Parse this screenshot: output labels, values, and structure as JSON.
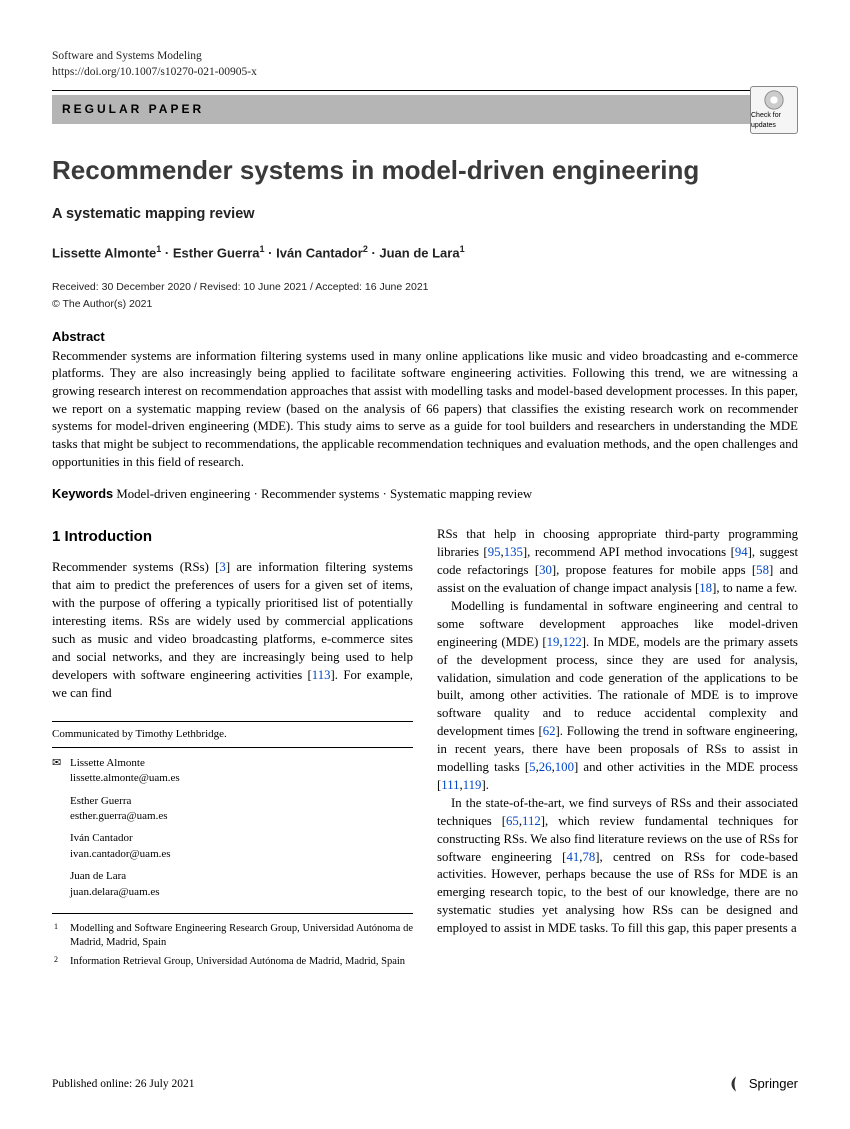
{
  "header": {
    "journal": "Software and Systems Modeling",
    "doi": "https://doi.org/10.1007/s10270-021-00905-x",
    "category": "REGULAR PAPER",
    "check_updates": "Check for updates"
  },
  "title": "Recommender systems in model-driven engineering",
  "subtitle": "A systematic mapping review",
  "authors_html": "Lissette Almonte<sup>1</sup> · Esther Guerra<sup>1</sup> · Iván Cantador<sup>2</sup> · Juan de Lara<sup>1</sup>",
  "dates": "Received: 30 December 2020 / Revised: 10 June 2021 / Accepted: 16 June 2021",
  "copyright": "© The Author(s) 2021",
  "abstract": {
    "label": "Abstract",
    "text": "Recommender systems are information filtering systems used in many online applications like music and video broadcasting and e-commerce platforms. They are also increasingly being applied to facilitate software engineering activities. Following this trend, we are witnessing a growing research interest on recommendation approaches that assist with modelling tasks and model-based development processes. In this paper, we report on a systematic mapping review (based on the analysis of 66 papers) that classifies the existing research work on recommender systems for model-driven engineering (MDE). This study aims to serve as a guide for tool builders and researchers in understanding the MDE tasks that might be subject to recommendations, the applicable recommendation techniques and evaluation methods, and the open challenges and opportunities in this field of research."
  },
  "keywords": {
    "label": "Keywords",
    "text": "Model-driven engineering · Recommender systems · Systematic mapping review"
  },
  "section1": {
    "head": "1 Introduction",
    "p1_a": "Recommender systems (RSs) [",
    "r1": "3",
    "p1_b": "] are information filtering systems that aim to predict the preferences of users for a given set of items, with the purpose of offering a typically prioritised list of potentially interesting items. RSs are widely used by commercial applications such as music and video broadcasting platforms, e-commerce sites and social networks, and they are increasingly being used to help developers with software engineering activities [",
    "r2": "113",
    "p1_c": "]. For example, we can find"
  },
  "col2": {
    "p1_a": "RSs that help in choosing appropriate third-party programming libraries [",
    "r1": "95",
    "r2": "135",
    "p1_b": "], recommend API method invocations [",
    "r3": "94",
    "p1_c": "], suggest code refactorings [",
    "r4": "30",
    "p1_d": "], propose features for mobile apps [",
    "r5": "58",
    "p1_e": "] and assist on the evaluation of change impact analysis [",
    "r6": "18",
    "p1_f": "], to name a few.",
    "p2_a": "Modelling is fundamental in software engineering and central to some software development approaches like model-driven engineering (MDE) [",
    "r7": "19",
    "r8": "122",
    "p2_b": "]. In MDE, models are the primary assets of the development process, since they are used for analysis, validation, simulation and code generation of the applications to be built, among other activities. The rationale of MDE is to improve software quality and to reduce accidental complexity and development times [",
    "r9": "62",
    "p2_c": "]. Following the trend in software engineering, in recent years, there have been proposals of RSs to assist in modelling tasks [",
    "r10": "5",
    "r11": "26",
    "r12": "100",
    "p2_d": "] and other activities in the MDE process [",
    "r13": "111",
    "r14": "119",
    "p2_e": "].",
    "p3_a": "In the state-of-the-art, we find surveys of RSs and their associated techniques [",
    "r15": "65",
    "r16": "112",
    "p3_b": "], which review fundamental techniques for constructing RSs. We also find literature reviews on the use of RSs for software engineering [",
    "r17": "41",
    "r18": "78",
    "p3_c": "], centred on RSs for code-based activities. However, perhaps because the use of RSs for MDE is an emerging research topic, to the best of our knowledge, there are no systematic studies yet analysing how RSs can be designed and employed to assist in MDE tasks. To fill this gap, this paper presents a"
  },
  "communicated": "Communicated by Timothy Lethbridge.",
  "correspondents": [
    {
      "name": "Lissette Almonte",
      "email": "lissette.almonte@uam.es",
      "primary": true
    },
    {
      "name": "Esther Guerra",
      "email": "esther.guerra@uam.es"
    },
    {
      "name": "Iván Cantador",
      "email": "ivan.cantador@uam.es"
    },
    {
      "name": "Juan de Lara",
      "email": "juan.delara@uam.es"
    }
  ],
  "affiliations": [
    {
      "num": "1",
      "text": "Modelling and Software Engineering Research Group, Universidad Autónoma de Madrid, Madrid, Spain"
    },
    {
      "num": "2",
      "text": "Information Retrieval Group, Universidad Autónoma de Madrid, Madrid, Spain"
    }
  ],
  "footer": {
    "published": "Published online: 26 July 2021",
    "publisher": "Springer"
  },
  "colors": {
    "link": "#0046c8",
    "category_bg": "#b5b5b5"
  }
}
